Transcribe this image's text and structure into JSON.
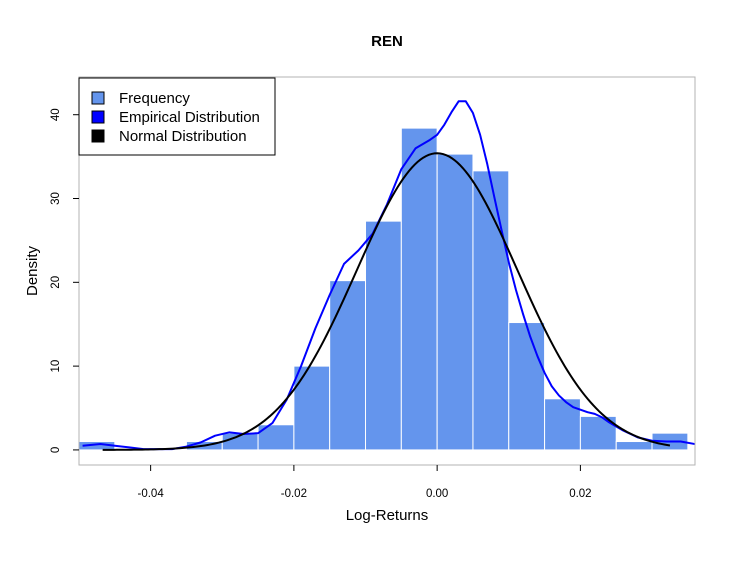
{
  "chart_data": {
    "type": "histogram",
    "title": "REN",
    "xlabel": "Log-Returns",
    "ylabel": "Density",
    "xlim": [
      -0.05,
      0.036
    ],
    "ylim": [
      -1.8,
      44.5
    ],
    "x_ticks": [
      -0.04,
      -0.02,
      0.0,
      0.02
    ],
    "x_tick_labels": [
      "-0.04",
      "-0.02",
      "0.00",
      "0.02"
    ],
    "y_ticks": [
      0,
      10,
      20,
      30,
      40
    ],
    "y_tick_labels": [
      "0",
      "10",
      "20",
      "30",
      "40"
    ],
    "grid": false,
    "legend_position": "top-left",
    "bars": {
      "name": "Frequency",
      "color": "#6495ED",
      "bin_width": 0.005,
      "bin_edges": [
        -0.05,
        -0.045,
        -0.04,
        -0.035,
        -0.03,
        -0.025,
        -0.02,
        -0.015,
        -0.01,
        -0.005,
        0.0,
        0.005,
        0.01,
        0.015,
        0.02,
        0.025,
        0.03,
        0.035
      ],
      "densities": [
        1,
        0,
        0,
        1,
        2,
        3,
        10,
        20.2,
        27.3,
        38.4,
        35.3,
        33.3,
        15.2,
        6.1,
        4,
        1,
        2
      ]
    },
    "series": [
      {
        "name": "Empirical Distribution",
        "color": "#0000FF",
        "x": [
          -0.0495,
          -0.047,
          -0.045,
          -0.043,
          -0.041,
          -0.039,
          -0.037,
          -0.035,
          -0.033,
          -0.031,
          -0.029,
          -0.027,
          -0.025,
          -0.023,
          -0.021,
          -0.019,
          -0.017,
          -0.015,
          -0.013,
          -0.011,
          -0.009,
          -0.007,
          -0.005,
          -0.003,
          -0.001,
          0.0,
          0.001,
          0.002,
          0.003,
          0.004,
          0.005,
          0.006,
          0.007,
          0.008,
          0.009,
          0.01,
          0.011,
          0.012,
          0.013,
          0.014,
          0.015,
          0.016,
          0.017,
          0.018,
          0.019,
          0.02,
          0.021,
          0.022,
          0.023,
          0.024,
          0.025,
          0.026,
          0.028,
          0.03,
          0.032,
          0.034,
          0.036
        ],
        "y": [
          0.5,
          0.7,
          0.5,
          0.3,
          0.1,
          0.1,
          0.1,
          0.4,
          0.9,
          1.7,
          2.1,
          1.9,
          2.0,
          3.2,
          6.0,
          10.0,
          14.5,
          18.5,
          22.2,
          23.8,
          25.8,
          29.3,
          33.5,
          36.0,
          37.0,
          37.6,
          38.8,
          40.3,
          41.6,
          41.6,
          40.2,
          37.6,
          34.1,
          30.1,
          26.2,
          22.4,
          19.1,
          16.2,
          13.5,
          11.2,
          9.2,
          7.6,
          6.5,
          5.7,
          5.1,
          4.8,
          4.5,
          4.3,
          3.9,
          3.3,
          2.8,
          2.3,
          1.5,
          1.1,
          1.0,
          1.0,
          0.7
        ]
      },
      {
        "name": "Normal Distribution",
        "color": "#000000",
        "mean": 0.0,
        "sd": 0.0112,
        "peak": 35.4,
        "x_from": -0.0467,
        "x_to": 0.0325
      }
    ]
  }
}
